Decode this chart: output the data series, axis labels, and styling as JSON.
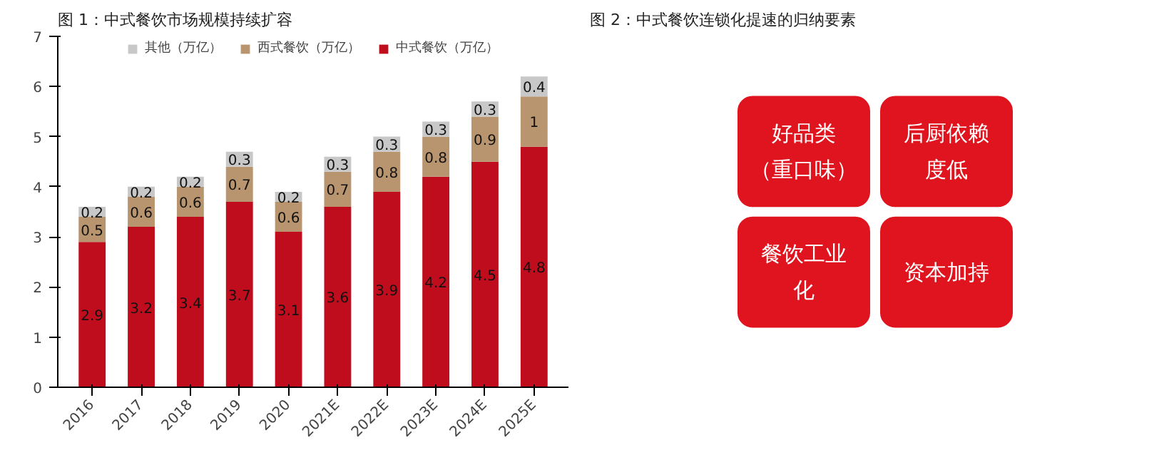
{
  "chart_data": [
    {
      "type": "bar",
      "title": "图 1：中式餐饮市场规模持续扩容",
      "stacked": true,
      "data_labels": true,
      "legend": "top",
      "grid": false,
      "categories": [
        "2016",
        "2017",
        "2018",
        "2019",
        "2020",
        "2021E",
        "2022E",
        "2023E",
        "2024E",
        "2025E"
      ],
      "ylim": [
        0,
        7
      ],
      "yticks": [
        0,
        1,
        2,
        3,
        4,
        5,
        6,
        7
      ],
      "series": [
        {
          "name": "中式餐饮（万亿）",
          "color": "#c00d1e",
          "values": [
            2.9,
            3.2,
            3.4,
            3.7,
            3.1,
            3.6,
            3.9,
            4.2,
            4.5,
            4.8
          ]
        },
        {
          "name": "西式餐饮（万亿）",
          "color": "#b9956f",
          "values": [
            0.5,
            0.6,
            0.6,
            0.7,
            0.6,
            0.7,
            0.8,
            0.8,
            0.9,
            1
          ]
        },
        {
          "name": "其他（万亿）",
          "color": "#c8c8c8",
          "values": [
            0.2,
            0.2,
            0.2,
            0.3,
            0.2,
            0.3,
            0.3,
            0.3,
            0.3,
            0.4
          ]
        }
      ]
    },
    {
      "type": "other",
      "title": "图 2：中式餐饮连锁化提速的归纳要素",
      "annotations": [
        "好品类（重口味）",
        "后厨依赖度低",
        "餐饮工业化",
        "资本加持"
      ]
    }
  ]
}
